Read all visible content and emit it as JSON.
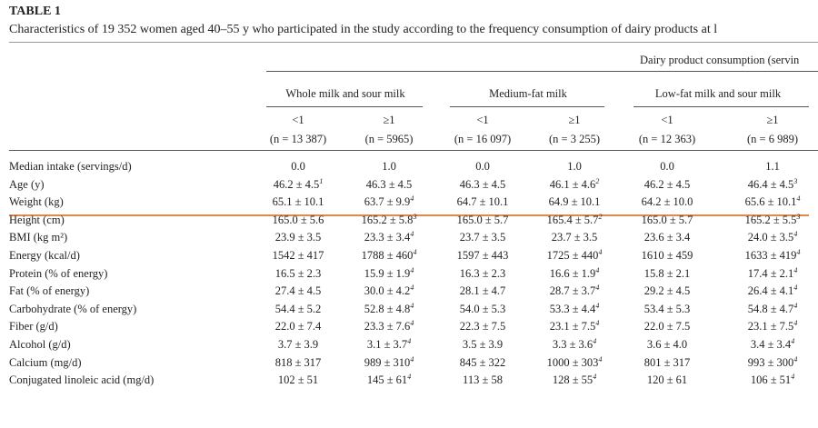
{
  "title": "TABLE 1",
  "caption": "Characteristics of 19 352 women aged 40–55 y who participated in the study according to the frequency consumption of dairy products at l",
  "table": {
    "spanner": "Dairy product consumption (servin",
    "groups": [
      "Whole milk and sour milk",
      "Medium-fat milk",
      "Low-fat milk and sour milk"
    ],
    "levels": [
      "<1",
      "≥1",
      "<1",
      "≥1",
      "<1",
      "≥1"
    ],
    "counts": [
      "(n = 13 387)",
      "(n = 5965)",
      "(n = 16 097)",
      "(n = 3 255)",
      "(n = 12 363)",
      "(n = 6 989)"
    ],
    "rows": [
      {
        "label": "Median intake (servings/d)",
        "cells": [
          {
            "text": "0.0"
          },
          {
            "text": "1.0"
          },
          {
            "text": "0.0"
          },
          {
            "text": "1.0"
          },
          {
            "text": "0.0"
          },
          {
            "text": "1.1"
          }
        ]
      },
      {
        "label": "Age (y)",
        "cells": [
          {
            "text": "46.2 ± 4.5",
            "sup": "1"
          },
          {
            "text": "46.3 ± 4.5"
          },
          {
            "text": "46.3 ± 4.5"
          },
          {
            "text": "46.1 ± 4.6",
            "sup": "2"
          },
          {
            "text": "46.2 ± 4.5"
          },
          {
            "text": "46.4 ± 4.5",
            "sup": "3"
          }
        ]
      },
      {
        "label": "Weight (kg)",
        "cells": [
          {
            "text": "65.1 ± 10.1"
          },
          {
            "text": "63.7 ± 9.9",
            "sup": "4"
          },
          {
            "text": "64.7 ± 10.1"
          },
          {
            "text": "64.9 ± 10.1"
          },
          {
            "text": "64.2 ± 10.0"
          },
          {
            "text": "65.6 ± 10.1",
            "sup": "4"
          }
        ]
      },
      {
        "label": "Height (cm)",
        "cells": [
          {
            "text": "165.0 ± 5.6"
          },
          {
            "text": "165.2 ± 5.8",
            "sup": "3"
          },
          {
            "text": "165.0 ± 5.7"
          },
          {
            "text": "165.4 ± 5.7",
            "sup": "2"
          },
          {
            "text": "165.0 ± 5.7"
          },
          {
            "text": "165.2 ± 5.5",
            "sup": "3"
          }
        ]
      },
      {
        "label": "BMI (kg m²)",
        "cells": [
          {
            "text": "23.9 ± 3.5"
          },
          {
            "text": "23.3 ± 3.4",
            "sup": "4"
          },
          {
            "text": "23.7 ± 3.5"
          },
          {
            "text": "23.7 ± 3.5"
          },
          {
            "text": "23.6 ± 3.4"
          },
          {
            "text": "24.0 ± 3.5",
            "sup": "4"
          }
        ]
      },
      {
        "label": "Energy (kcal/d)",
        "cells": [
          {
            "text": "1542 ± 417"
          },
          {
            "text": "1788 ± 460",
            "sup": "4"
          },
          {
            "text": "1597 ± 443"
          },
          {
            "text": "1725 ± 440",
            "sup": "4"
          },
          {
            "text": "1610 ± 459"
          },
          {
            "text": "1633 ± 419",
            "sup": "4"
          }
        ]
      },
      {
        "label": "Protein (% of energy)",
        "cells": [
          {
            "text": "16.5 ± 2.3"
          },
          {
            "text": "15.9 ± 1.9",
            "sup": "4"
          },
          {
            "text": "16.3 ± 2.3"
          },
          {
            "text": "16.6 ± 1.9",
            "sup": "4"
          },
          {
            "text": "15.8 ± 2.1"
          },
          {
            "text": "17.4 ± 2.1",
            "sup": "4"
          }
        ]
      },
      {
        "label": "Fat (% of energy)",
        "cells": [
          {
            "text": "27.4 ± 4.5"
          },
          {
            "text": "30.0 ± 4.2",
            "sup": "4"
          },
          {
            "text": "28.1 ± 4.7"
          },
          {
            "text": "28.7 ± 3.7",
            "sup": "4"
          },
          {
            "text": "29.2 ± 4.5"
          },
          {
            "text": "26.4 ± 4.1",
            "sup": "4"
          }
        ]
      },
      {
        "label": "Carbohydrate (% of energy)",
        "cells": [
          {
            "text": "54.4 ± 5.2"
          },
          {
            "text": "52.8 ± 4.8",
            "sup": "4"
          },
          {
            "text": "54.0 ± 5.3"
          },
          {
            "text": "53.3 ± 4.4",
            "sup": "4"
          },
          {
            "text": "53.4 ± 5.3"
          },
          {
            "text": "54.8 ± 4.7",
            "sup": "4"
          }
        ]
      },
      {
        "label": "Fiber (g/d)",
        "cells": [
          {
            "text": "22.0 ± 7.4"
          },
          {
            "text": "23.3 ± 7.6",
            "sup": "4"
          },
          {
            "text": "22.3 ± 7.5"
          },
          {
            "text": "23.1 ± 7.5",
            "sup": "4"
          },
          {
            "text": "22.0 ± 7.5"
          },
          {
            "text": "23.1 ± 7.5",
            "sup": "4"
          }
        ]
      },
      {
        "label": "Alcohol (g/d)",
        "cells": [
          {
            "text": "3.7 ± 3.9"
          },
          {
            "text": "3.1 ± 3.7",
            "sup": "4"
          },
          {
            "text": "3.5 ± 3.9"
          },
          {
            "text": "3.3 ± 3.6",
            "sup": "4"
          },
          {
            "text": "3.6 ± 4.0"
          },
          {
            "text": "3.4 ± 3.4",
            "sup": "4"
          }
        ]
      },
      {
        "label": "Calcium (mg/d)",
        "cells": [
          {
            "text": "818 ± 317"
          },
          {
            "text": "989 ± 310",
            "sup": "4"
          },
          {
            "text": "845 ± 322"
          },
          {
            "text": "1000 ± 303",
            "sup": "4"
          },
          {
            "text": "801 ± 317"
          },
          {
            "text": "993 ± 300",
            "sup": "4"
          }
        ]
      },
      {
        "label": "Conjugated linoleic acid (mg/d)",
        "cells": [
          {
            "text": "102 ± 51"
          },
          {
            "text": "145 ± 61",
            "sup": "4"
          },
          {
            "text": "113 ± 58"
          },
          {
            "text": "128 ± 55",
            "sup": "4"
          },
          {
            "text": "120 ± 61"
          },
          {
            "text": "106 ± 51",
            "sup": "4"
          }
        ]
      }
    ]
  }
}
